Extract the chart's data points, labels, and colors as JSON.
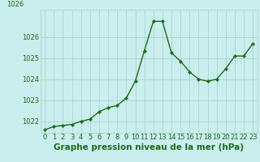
{
  "x": [
    0,
    1,
    2,
    3,
    4,
    5,
    6,
    7,
    8,
    9,
    10,
    11,
    12,
    13,
    14,
    15,
    16,
    17,
    18,
    19,
    20,
    21,
    22,
    23
  ],
  "y": [
    1021.6,
    1021.75,
    1021.8,
    1021.85,
    1022.0,
    1022.1,
    1022.45,
    1022.65,
    1022.75,
    1023.1,
    1023.9,
    1025.35,
    1026.75,
    1026.75,
    1025.25,
    1024.85,
    1024.35,
    1024.0,
    1023.9,
    1024.0,
    1024.5,
    1025.1,
    1025.1,
    1025.7
  ],
  "line_color": "#1a6b1a",
  "marker": "D",
  "marker_size": 2.2,
  "bg_color": "#caeeed",
  "grid_color": "#b0d8d5",
  "xlabel": "Graphe pression niveau de la mer (hPa)",
  "xlabel_fontsize": 7.5,
  "ylim": [
    1021.45,
    1027.3
  ],
  "yticks": [
    1022,
    1023,
    1024,
    1025,
    1026
  ],
  "ytop_label": "1026",
  "xtick_labels": [
    "0",
    "1",
    "2",
    "3",
    "4",
    "5",
    "6",
    "7",
    "8",
    "9",
    "10",
    "11",
    "12",
    "13",
    "14",
    "15",
    "16",
    "17",
    "18",
    "19",
    "20",
    "21",
    "22",
    "23"
  ],
  "tick_fontsize": 6.0,
  "tick_color": "#1a6b1a"
}
